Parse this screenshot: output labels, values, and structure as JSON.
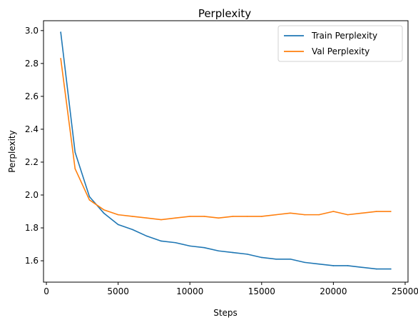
{
  "chart_data": {
    "type": "line",
    "title": "Perplexity",
    "xlabel": "Steps",
    "ylabel": "Perplexity",
    "xlim": [
      -200,
      25200
    ],
    "ylim": [
      1.47,
      3.06
    ],
    "grid": false,
    "legend_position": "top-right",
    "x_ticks": [
      0,
      5000,
      10000,
      15000,
      20000,
      25000
    ],
    "x_tick_labels": [
      "0",
      "5000",
      "10000",
      "15000",
      "20000",
      "25000"
    ],
    "y_ticks": [
      1.6,
      1.8,
      2.0,
      2.2,
      2.4,
      2.6,
      2.8,
      3.0
    ],
    "y_tick_labels": [
      "1.6",
      "1.8",
      "2.0",
      "2.2",
      "2.4",
      "2.6",
      "2.8",
      "3.0"
    ],
    "x": [
      1000,
      2000,
      3000,
      4000,
      5000,
      6000,
      7000,
      8000,
      9000,
      10000,
      11000,
      12000,
      13000,
      14000,
      15000,
      16000,
      17000,
      18000,
      19000,
      20000,
      21000,
      22000,
      23000,
      24000
    ],
    "series": [
      {
        "name": "Train Perplexity",
        "color": "#1f77b4",
        "values": [
          2.99,
          2.26,
          1.99,
          1.89,
          1.82,
          1.79,
          1.75,
          1.72,
          1.71,
          1.69,
          1.68,
          1.66,
          1.65,
          1.64,
          1.62,
          1.61,
          1.61,
          1.59,
          1.58,
          1.57,
          1.57,
          1.56,
          1.55,
          1.55
        ]
      },
      {
        "name": "Val Perplexity",
        "color": "#ff7f0e",
        "values": [
          2.83,
          2.16,
          1.97,
          1.91,
          1.88,
          1.87,
          1.86,
          1.85,
          1.86,
          1.87,
          1.87,
          1.86,
          1.87,
          1.87,
          1.87,
          1.88,
          1.89,
          1.88,
          1.88,
          1.9,
          1.88,
          1.89,
          1.9,
          1.9
        ]
      }
    ]
  }
}
